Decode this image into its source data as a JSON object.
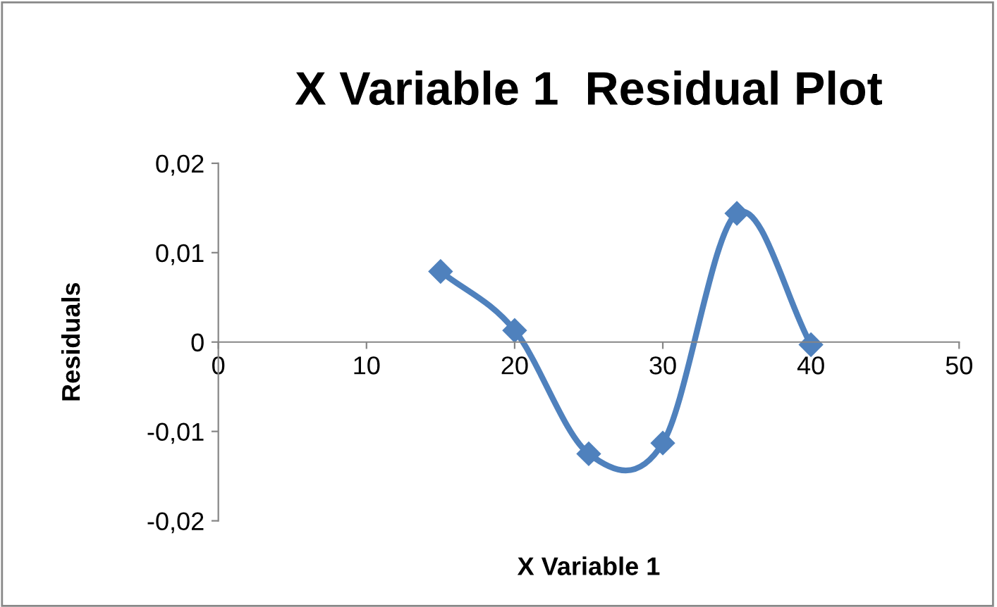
{
  "chart_data": {
    "type": "line",
    "title": "X Variable 1  Residual Plot",
    "xlabel": "X Variable 1",
    "ylabel": "Residuals",
    "x": [
      15,
      20,
      25,
      30,
      35,
      40
    ],
    "series": [
      {
        "color": "#4f81bd",
        "values": [
          0.0079,
          0.0013,
          -0.0125,
          -0.0113,
          0.0144,
          -0.0003
        ]
      }
    ],
    "xlim": [
      0,
      50
    ],
    "xticks": [
      0,
      10,
      20,
      30,
      40,
      50
    ],
    "ylim": [
      -0.02,
      0.02
    ],
    "yticks": [
      {
        "value": -0.02,
        "label": "-0,02"
      },
      {
        "value": -0.01,
        "label": "-0,01"
      },
      {
        "value": 0,
        "label": "0"
      },
      {
        "value": 0.01,
        "label": "0,01"
      },
      {
        "value": 0.02,
        "label": "0,02"
      }
    ],
    "marker": "diamond",
    "line_style": "solid",
    "grid": false,
    "legend": false
  }
}
